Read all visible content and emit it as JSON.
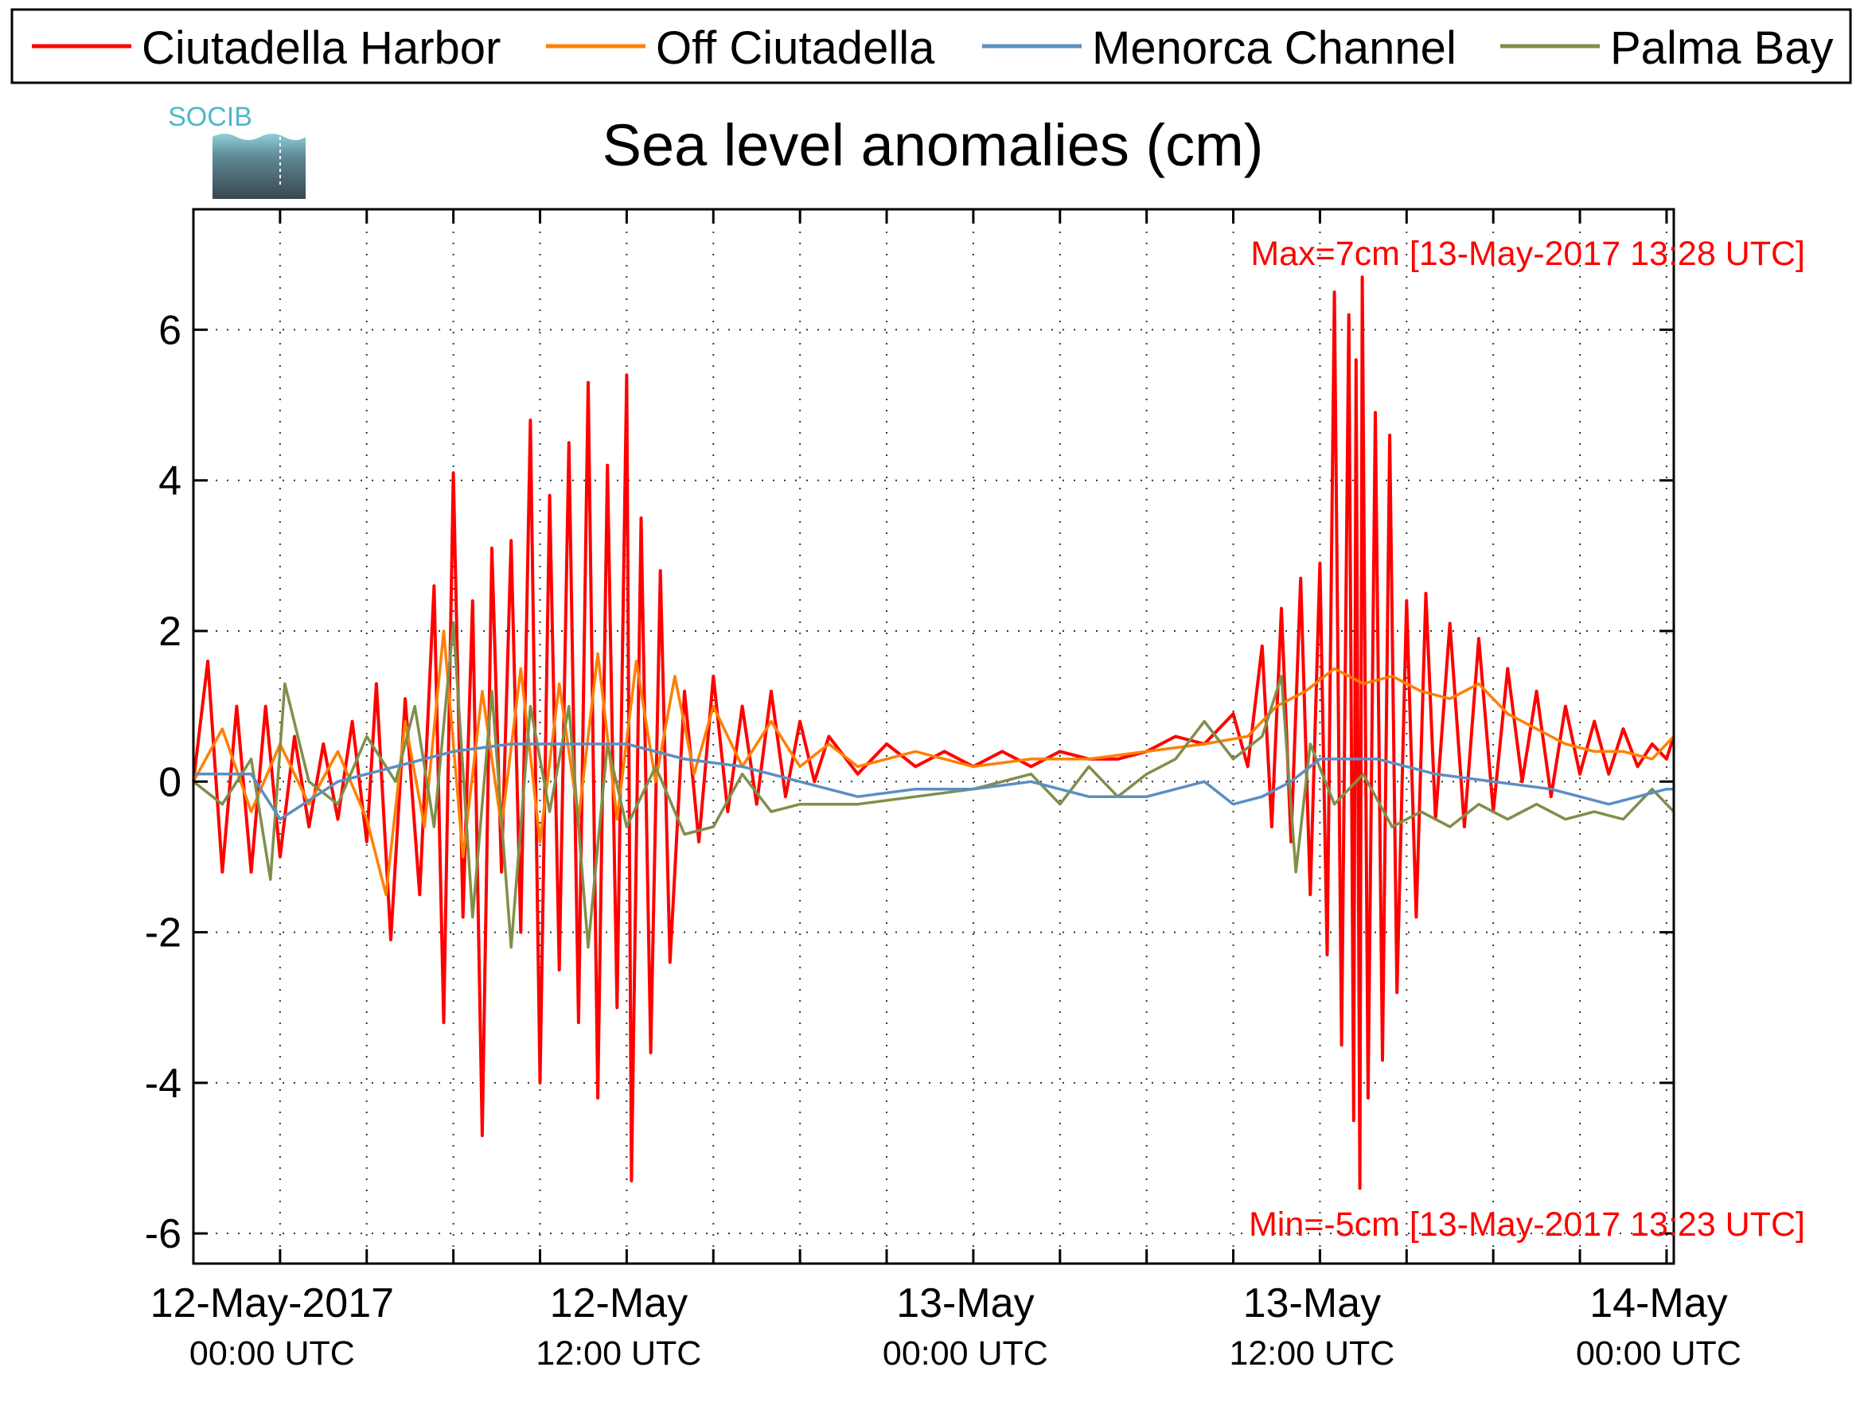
{
  "chart_data": {
    "type": "line",
    "title": "Sea level anomalies (cm)",
    "xlabel": "",
    "ylabel": "",
    "x_range": [
      "2017-05-11 21:00 UTC",
      "2017-05-14 00:15 UTC"
    ],
    "ylim": [
      -6.4,
      7.6
    ],
    "y_ticks": [
      6,
      4,
      2,
      0,
      -2,
      -4,
      -6
    ],
    "y_tick_labels": [
      "6",
      "4",
      "2",
      "0",
      "-2",
      "-4",
      "-6"
    ],
    "grid": true,
    "legend_position": "top (above plot, single row)",
    "x_tick_labels": [
      {
        "t": "2017-05-12 00:00",
        "top": "12-May-2017",
        "bottom": "00:00 UTC"
      },
      {
        "t": "2017-05-12 12:00",
        "top": "12-May",
        "bottom": "12:00 UTC"
      },
      {
        "t": "2017-05-13 00:00",
        "top": "13-May",
        "bottom": "00:00 UTC"
      },
      {
        "t": "2017-05-13 12:00",
        "top": "13-May",
        "bottom": "12:00 UTC"
      },
      {
        "t": "2017-05-14 00:00",
        "top": "14-May",
        "bottom": "00:00 UTC"
      }
    ],
    "x_minor_grid_hours": [
      3,
      6,
      9,
      15,
      18,
      21,
      27,
      30,
      33,
      39,
      42,
      45
    ],
    "annotations": {
      "max": "Max=7cm [13-May-2017 13:28 UTC]",
      "min": "Min=-5cm [13-May-2017 13:23 UTC]"
    },
    "series": [
      {
        "name": "Ciutadella Harbor",
        "color": "#ff0000",
        "points": [
          [
            "2017-05-11 21:00",
            0.0
          ],
          [
            "2017-05-11 21:30",
            1.6
          ],
          [
            "2017-05-11 22:00",
            -1.2
          ],
          [
            "2017-05-11 22:30",
            1.0
          ],
          [
            "2017-05-11 23:00",
            -1.2
          ],
          [
            "2017-05-11 23:30",
            1.0
          ],
          [
            "2017-05-12 00:00",
            -1.0
          ],
          [
            "2017-05-12 00:30",
            0.6
          ],
          [
            "2017-05-12 01:00",
            -0.6
          ],
          [
            "2017-05-12 01:30",
            0.5
          ],
          [
            "2017-05-12 02:00",
            -0.5
          ],
          [
            "2017-05-12 02:30",
            0.8
          ],
          [
            "2017-05-12 03:00",
            -0.8
          ],
          [
            "2017-05-12 03:20",
            1.3
          ],
          [
            "2017-05-12 03:50",
            -2.1
          ],
          [
            "2017-05-12 04:20",
            1.1
          ],
          [
            "2017-05-12 04:50",
            -1.5
          ],
          [
            "2017-05-12 05:20",
            2.6
          ],
          [
            "2017-05-12 05:40",
            -3.2
          ],
          [
            "2017-05-12 06:00",
            4.1
          ],
          [
            "2017-05-12 06:20",
            -1.8
          ],
          [
            "2017-05-12 06:40",
            2.4
          ],
          [
            "2017-05-12 07:00",
            -4.7
          ],
          [
            "2017-05-12 07:20",
            3.1
          ],
          [
            "2017-05-12 07:40",
            -1.2
          ],
          [
            "2017-05-12 08:00",
            3.2
          ],
          [
            "2017-05-12 08:20",
            -2.0
          ],
          [
            "2017-05-12 08:40",
            4.8
          ],
          [
            "2017-05-12 09:00",
            -4.0
          ],
          [
            "2017-05-12 09:20",
            3.8
          ],
          [
            "2017-05-12 09:40",
            -2.5
          ],
          [
            "2017-05-12 10:00",
            4.5
          ],
          [
            "2017-05-12 10:20",
            -3.2
          ],
          [
            "2017-05-12 10:40",
            5.3
          ],
          [
            "2017-05-12 11:00",
            -4.2
          ],
          [
            "2017-05-12 11:20",
            4.2
          ],
          [
            "2017-05-12 11:40",
            -3.0
          ],
          [
            "2017-05-12 12:00",
            5.4
          ],
          [
            "2017-05-12 12:10",
            -5.3
          ],
          [
            "2017-05-12 12:30",
            3.5
          ],
          [
            "2017-05-12 12:50",
            -3.6
          ],
          [
            "2017-05-12 13:10",
            2.8
          ],
          [
            "2017-05-12 13:30",
            -2.4
          ],
          [
            "2017-05-12 14:00",
            1.2
          ],
          [
            "2017-05-12 14:30",
            -0.8
          ],
          [
            "2017-05-12 15:00",
            1.4
          ],
          [
            "2017-05-12 15:30",
            -0.4
          ],
          [
            "2017-05-12 16:00",
            1.0
          ],
          [
            "2017-05-12 16:30",
            -0.3
          ],
          [
            "2017-05-12 17:00",
            1.2
          ],
          [
            "2017-05-12 17:30",
            -0.2
          ],
          [
            "2017-05-12 18:00",
            0.8
          ],
          [
            "2017-05-12 18:30",
            0.0
          ],
          [
            "2017-05-12 19:00",
            0.6
          ],
          [
            "2017-05-12 20:00",
            0.1
          ],
          [
            "2017-05-12 21:00",
            0.5
          ],
          [
            "2017-05-12 22:00",
            0.2
          ],
          [
            "2017-05-12 23:00",
            0.4
          ],
          [
            "2017-05-13 00:00",
            0.2
          ],
          [
            "2017-05-13 01:00",
            0.4
          ],
          [
            "2017-05-13 02:00",
            0.2
          ],
          [
            "2017-05-13 03:00",
            0.4
          ],
          [
            "2017-05-13 04:00",
            0.3
          ],
          [
            "2017-05-13 05:00",
            0.3
          ],
          [
            "2017-05-13 06:00",
            0.4
          ],
          [
            "2017-05-13 07:00",
            0.6
          ],
          [
            "2017-05-13 08:00",
            0.5
          ],
          [
            "2017-05-13 09:00",
            0.9
          ],
          [
            "2017-05-13 09:30",
            0.2
          ],
          [
            "2017-05-13 10:00",
            1.8
          ],
          [
            "2017-05-13 10:20",
            -0.6
          ],
          [
            "2017-05-13 10:40",
            2.3
          ],
          [
            "2017-05-13 11:00",
            -0.8
          ],
          [
            "2017-05-13 11:20",
            2.7
          ],
          [
            "2017-05-13 11:40",
            -1.5
          ],
          [
            "2017-05-13 12:00",
            2.9
          ],
          [
            "2017-05-13 12:15",
            -2.3
          ],
          [
            "2017-05-13 12:30",
            6.5
          ],
          [
            "2017-05-13 12:45",
            -3.5
          ],
          [
            "2017-05-13 13:00",
            6.2
          ],
          [
            "2017-05-13 13:10",
            -4.5
          ],
          [
            "2017-05-13 13:15",
            5.6
          ],
          [
            "2017-05-13 13:23",
            -5.4
          ],
          [
            "2017-05-13 13:28",
            6.7
          ],
          [
            "2017-05-13 13:40",
            -4.2
          ],
          [
            "2017-05-13 13:55",
            4.9
          ],
          [
            "2017-05-13 14:10",
            -3.7
          ],
          [
            "2017-05-13 14:25",
            4.6
          ],
          [
            "2017-05-13 14:40",
            -2.8
          ],
          [
            "2017-05-13 15:00",
            2.4
          ],
          [
            "2017-05-13 15:20",
            -1.8
          ],
          [
            "2017-05-13 15:40",
            2.5
          ],
          [
            "2017-05-13 16:00",
            -0.5
          ],
          [
            "2017-05-13 16:30",
            2.1
          ],
          [
            "2017-05-13 17:00",
            -0.6
          ],
          [
            "2017-05-13 17:30",
            1.9
          ],
          [
            "2017-05-13 18:00",
            -0.4
          ],
          [
            "2017-05-13 18:30",
            1.5
          ],
          [
            "2017-05-13 19:00",
            0.0
          ],
          [
            "2017-05-13 19:30",
            1.2
          ],
          [
            "2017-05-13 20:00",
            -0.2
          ],
          [
            "2017-05-13 20:30",
            1.0
          ],
          [
            "2017-05-13 21:00",
            0.1
          ],
          [
            "2017-05-13 21:30",
            0.8
          ],
          [
            "2017-05-13 22:00",
            0.1
          ],
          [
            "2017-05-13 22:30",
            0.7
          ],
          [
            "2017-05-13 23:00",
            0.2
          ],
          [
            "2017-05-13 23:30",
            0.5
          ],
          [
            "2017-05-14 00:00",
            0.3
          ],
          [
            "2017-05-14 00:15",
            0.6
          ]
        ]
      },
      {
        "name": "Off Ciutadella",
        "color": "#ff7f00",
        "points": [
          [
            "2017-05-11 21:00",
            0.0
          ],
          [
            "2017-05-11 22:00",
            0.7
          ],
          [
            "2017-05-11 23:00",
            -0.4
          ],
          [
            "2017-05-12 00:00",
            0.5
          ],
          [
            "2017-05-12 01:00",
            -0.3
          ],
          [
            "2017-05-12 02:00",
            0.4
          ],
          [
            "2017-05-12 03:00",
            -0.5
          ],
          [
            "2017-05-12 03:40",
            -1.5
          ],
          [
            "2017-05-12 04:20",
            0.8
          ],
          [
            "2017-05-12 05:00",
            -0.6
          ],
          [
            "2017-05-12 05:40",
            2.0
          ],
          [
            "2017-05-12 06:20",
            -1.0
          ],
          [
            "2017-05-12 07:00",
            1.2
          ],
          [
            "2017-05-12 07:40",
            -0.6
          ],
          [
            "2017-05-12 08:20",
            1.5
          ],
          [
            "2017-05-12 09:00",
            -0.8
          ],
          [
            "2017-05-12 09:40",
            1.3
          ],
          [
            "2017-05-12 10:20",
            -0.5
          ],
          [
            "2017-05-12 11:00",
            1.7
          ],
          [
            "2017-05-12 11:40",
            -0.5
          ],
          [
            "2017-05-12 12:20",
            1.6
          ],
          [
            "2017-05-12 13:00",
            0.0
          ],
          [
            "2017-05-12 13:40",
            1.4
          ],
          [
            "2017-05-12 14:20",
            0.1
          ],
          [
            "2017-05-12 15:00",
            1.0
          ],
          [
            "2017-05-12 16:00",
            0.2
          ],
          [
            "2017-05-12 17:00",
            0.8
          ],
          [
            "2017-05-12 18:00",
            0.2
          ],
          [
            "2017-05-12 19:00",
            0.5
          ],
          [
            "2017-05-12 20:00",
            0.2
          ],
          [
            "2017-05-12 22:00",
            0.4
          ],
          [
            "2017-05-13 00:00",
            0.2
          ],
          [
            "2017-05-13 02:00",
            0.3
          ],
          [
            "2017-05-13 04:00",
            0.3
          ],
          [
            "2017-05-13 06:00",
            0.4
          ],
          [
            "2017-05-13 08:00",
            0.5
          ],
          [
            "2017-05-13 09:30",
            0.6
          ],
          [
            "2017-05-13 10:30",
            1.0
          ],
          [
            "2017-05-13 11:30",
            1.2
          ],
          [
            "2017-05-13 12:30",
            1.5
          ],
          [
            "2017-05-13 13:30",
            1.3
          ],
          [
            "2017-05-13 14:30",
            1.4
          ],
          [
            "2017-05-13 15:30",
            1.2
          ],
          [
            "2017-05-13 16:30",
            1.1
          ],
          [
            "2017-05-13 17:30",
            1.3
          ],
          [
            "2017-05-13 18:30",
            0.9
          ],
          [
            "2017-05-13 19:30",
            0.7
          ],
          [
            "2017-05-13 20:30",
            0.5
          ],
          [
            "2017-05-13 21:30",
            0.4
          ],
          [
            "2017-05-13 22:30",
            0.4
          ],
          [
            "2017-05-13 23:30",
            0.3
          ],
          [
            "2017-05-14 00:15",
            0.6
          ]
        ]
      },
      {
        "name": "Menorca Channel",
        "color": "#5b8ec2",
        "points": [
          [
            "2017-05-11 21:00",
            0.1
          ],
          [
            "2017-05-11 23:00",
            0.1
          ],
          [
            "2017-05-12 00:00",
            -0.5
          ],
          [
            "2017-05-12 02:00",
            0.0
          ],
          [
            "2017-05-12 04:00",
            0.2
          ],
          [
            "2017-05-12 06:00",
            0.4
          ],
          [
            "2017-05-12 08:00",
            0.5
          ],
          [
            "2017-05-12 10:00",
            0.5
          ],
          [
            "2017-05-12 12:00",
            0.5
          ],
          [
            "2017-05-12 14:00",
            0.3
          ],
          [
            "2017-05-12 16:00",
            0.2
          ],
          [
            "2017-05-12 18:00",
            0.0
          ],
          [
            "2017-05-12 20:00",
            -0.2
          ],
          [
            "2017-05-12 22:00",
            -0.1
          ],
          [
            "2017-05-13 00:00",
            -0.1
          ],
          [
            "2017-05-13 02:00",
            0.0
          ],
          [
            "2017-05-13 04:00",
            -0.2
          ],
          [
            "2017-05-13 06:00",
            -0.2
          ],
          [
            "2017-05-13 08:00",
            0.0
          ],
          [
            "2017-05-13 09:00",
            -0.3
          ],
          [
            "2017-05-13 10:00",
            -0.2
          ],
          [
            "2017-05-13 11:00",
            0.0
          ],
          [
            "2017-05-13 12:00",
            0.3
          ],
          [
            "2017-05-13 14:00",
            0.3
          ],
          [
            "2017-05-13 16:00",
            0.1
          ],
          [
            "2017-05-13 18:00",
            0.0
          ],
          [
            "2017-05-13 20:00",
            -0.1
          ],
          [
            "2017-05-13 22:00",
            -0.3
          ],
          [
            "2017-05-14 00:00",
            -0.1
          ],
          [
            "2017-05-14 00:15",
            -0.1
          ]
        ]
      },
      {
        "name": "Palma Bay",
        "color": "#7f8f4a",
        "points": [
          [
            "2017-05-11 21:00",
            0.0
          ],
          [
            "2017-05-11 22:00",
            -0.3
          ],
          [
            "2017-05-11 23:00",
            0.3
          ],
          [
            "2017-05-11 23:40",
            -1.3
          ],
          [
            "2017-05-12 00:10",
            1.3
          ],
          [
            "2017-05-12 01:00",
            0.0
          ],
          [
            "2017-05-12 02:00",
            -0.3
          ],
          [
            "2017-05-12 03:00",
            0.6
          ],
          [
            "2017-05-12 04:00",
            0.0
          ],
          [
            "2017-05-12 04:40",
            1.0
          ],
          [
            "2017-05-12 05:20",
            -0.6
          ],
          [
            "2017-05-12 06:00",
            2.1
          ],
          [
            "2017-05-12 06:40",
            -1.8
          ],
          [
            "2017-05-12 07:20",
            1.2
          ],
          [
            "2017-05-12 08:00",
            -2.2
          ],
          [
            "2017-05-12 08:40",
            1.0
          ],
          [
            "2017-05-12 09:20",
            -0.4
          ],
          [
            "2017-05-12 10:00",
            1.0
          ],
          [
            "2017-05-12 10:40",
            -2.2
          ],
          [
            "2017-05-12 11:20",
            0.5
          ],
          [
            "2017-05-12 12:00",
            -0.6
          ],
          [
            "2017-05-12 13:00",
            0.2
          ],
          [
            "2017-05-12 14:00",
            -0.7
          ],
          [
            "2017-05-12 15:00",
            -0.6
          ],
          [
            "2017-05-12 16:00",
            0.1
          ],
          [
            "2017-05-12 17:00",
            -0.4
          ],
          [
            "2017-05-12 18:00",
            -0.3
          ],
          [
            "2017-05-12 20:00",
            -0.3
          ],
          [
            "2017-05-12 22:00",
            -0.2
          ],
          [
            "2017-05-13 00:00",
            -0.1
          ],
          [
            "2017-05-13 02:00",
            0.1
          ],
          [
            "2017-05-13 03:00",
            -0.3
          ],
          [
            "2017-05-13 04:00",
            0.2
          ],
          [
            "2017-05-13 05:00",
            -0.2
          ],
          [
            "2017-05-13 06:00",
            0.1
          ],
          [
            "2017-05-13 07:00",
            0.3
          ],
          [
            "2017-05-13 08:00",
            0.8
          ],
          [
            "2017-05-13 09:00",
            0.3
          ],
          [
            "2017-05-13 10:00",
            0.6
          ],
          [
            "2017-05-13 10:40",
            1.4
          ],
          [
            "2017-05-13 11:10",
            -1.2
          ],
          [
            "2017-05-13 11:40",
            0.5
          ],
          [
            "2017-05-13 12:30",
            -0.3
          ],
          [
            "2017-05-13 13:30",
            0.1
          ],
          [
            "2017-05-13 14:30",
            -0.6
          ],
          [
            "2017-05-13 15:30",
            -0.4
          ],
          [
            "2017-05-13 16:30",
            -0.6
          ],
          [
            "2017-05-13 17:30",
            -0.3
          ],
          [
            "2017-05-13 18:30",
            -0.5
          ],
          [
            "2017-05-13 19:30",
            -0.3
          ],
          [
            "2017-05-13 20:30",
            -0.5
          ],
          [
            "2017-05-13 21:30",
            -0.4
          ],
          [
            "2017-05-13 22:30",
            -0.5
          ],
          [
            "2017-05-13 23:30",
            -0.1
          ],
          [
            "2017-05-14 00:15",
            -0.4
          ]
        ]
      }
    ]
  },
  "logo": {
    "text": "SOCIB"
  }
}
